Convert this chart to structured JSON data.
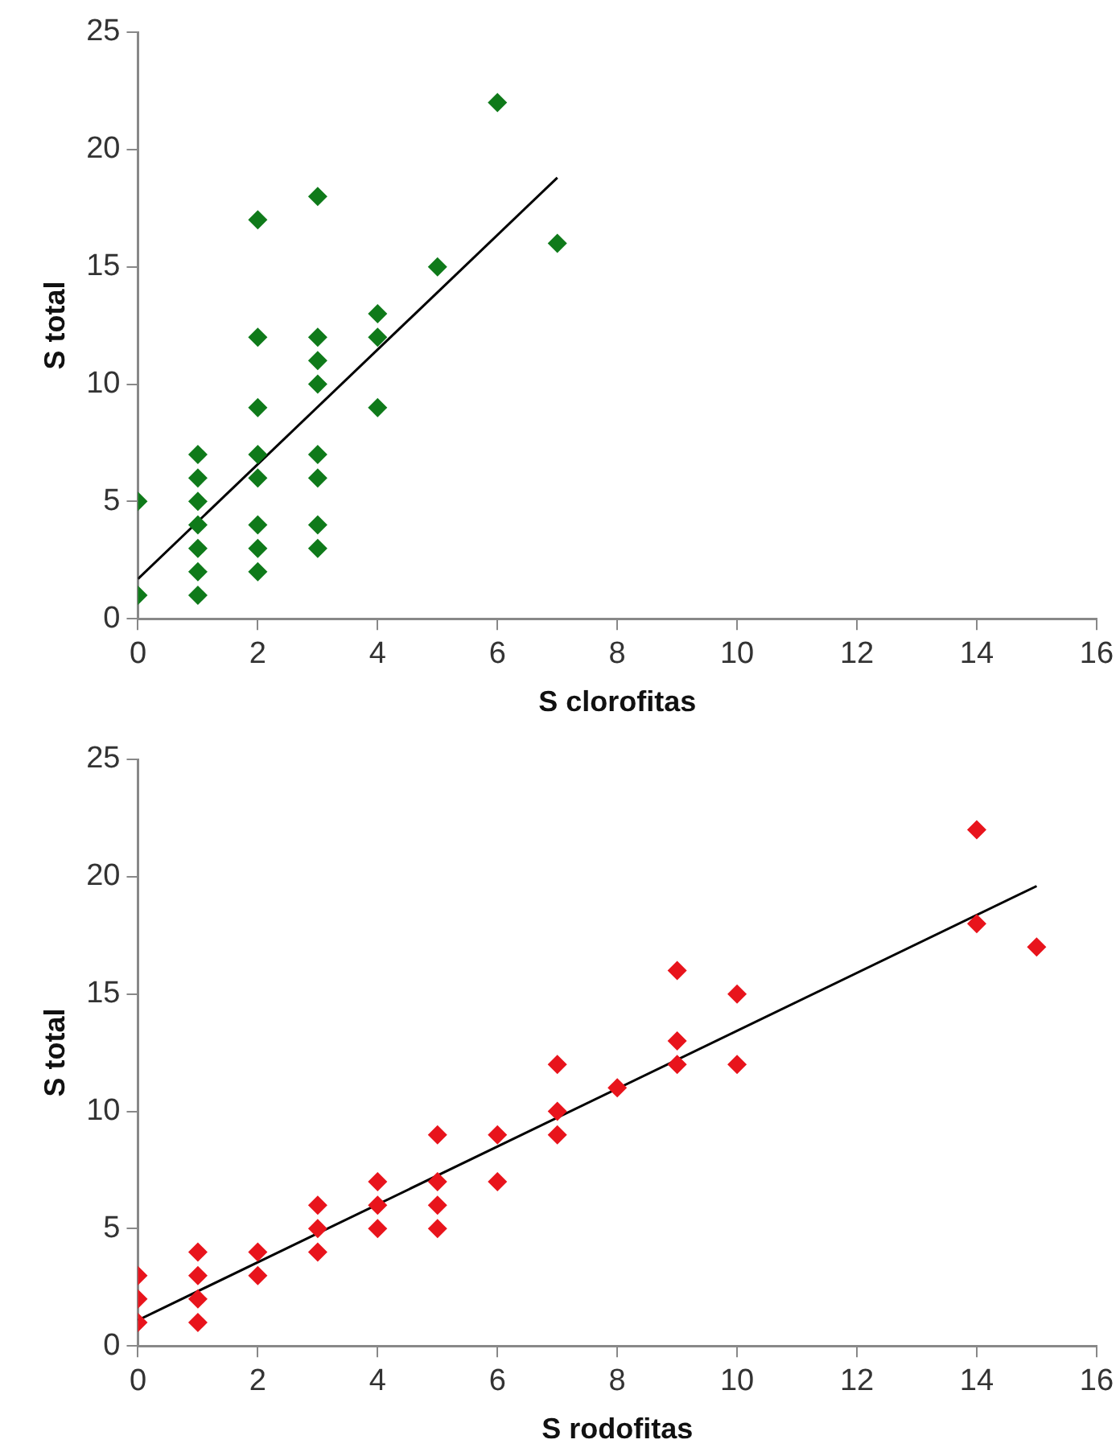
{
  "chart_data": [
    {
      "type": "scatter",
      "xlabel": "S clorofitas",
      "ylabel": "S total",
      "grid": false,
      "legend": false,
      "xlim": [
        0,
        16
      ],
      "xticks": [
        0,
        2,
        4,
        6,
        8,
        10,
        12,
        14,
        16
      ],
      "ylim": [
        0,
        25
      ],
      "yticks": [
        0,
        5,
        10,
        15,
        20,
        25
      ],
      "series": [
        {
          "color": "#0f7a1a",
          "marker": "diamond",
          "x": [
            0,
            0,
            1,
            1,
            1,
            1,
            1,
            1,
            1,
            2,
            2,
            2,
            2,
            2,
            2,
            2,
            2,
            3,
            3,
            3,
            3,
            3,
            3,
            3,
            3,
            4,
            4,
            4,
            5,
            6,
            7
          ],
          "values": [
            1,
            5,
            1,
            2,
            3,
            4,
            5,
            6,
            7,
            2,
            3,
            4,
            6,
            7,
            9,
            12,
            17,
            3,
            4,
            6,
            7,
            10,
            11,
            12,
            18,
            9,
            12,
            13,
            15,
            22,
            16
          ]
        },
        {
          "type": "line",
          "marker": "none",
          "color": "#000000",
          "x": [
            0,
            7
          ],
          "values": [
            1.7,
            18.8
          ]
        }
      ]
    },
    {
      "type": "scatter",
      "xlabel": "S rodofitas",
      "ylabel": "S total",
      "grid": false,
      "legend": false,
      "xlim": [
        0,
        16
      ],
      "xticks": [
        0,
        2,
        4,
        6,
        8,
        10,
        12,
        14,
        16
      ],
      "ylim": [
        0,
        25
      ],
      "yticks": [
        0,
        5,
        10,
        15,
        20,
        25
      ],
      "series": [
        {
          "color": "#e8141c",
          "marker": "diamond",
          "x": [
            0,
            0,
            0,
            1,
            1,
            1,
            1,
            2,
            2,
            3,
            3,
            3,
            4,
            4,
            4,
            5,
            5,
            5,
            5,
            6,
            6,
            7,
            7,
            7,
            8,
            9,
            9,
            9,
            10,
            10,
            14,
            14,
            15
          ],
          "values": [
            1,
            2,
            3,
            1,
            2,
            3,
            4,
            3,
            4,
            4,
            5,
            6,
            5,
            6,
            7,
            5,
            6,
            7,
            9,
            7,
            9,
            9,
            10,
            12,
            11,
            12,
            13,
            16,
            12,
            15,
            18,
            22,
            17
          ]
        },
        {
          "type": "line",
          "marker": "none",
          "color": "#000000",
          "x": [
            0,
            15
          ],
          "values": [
            1.1,
            19.6
          ]
        }
      ]
    }
  ]
}
